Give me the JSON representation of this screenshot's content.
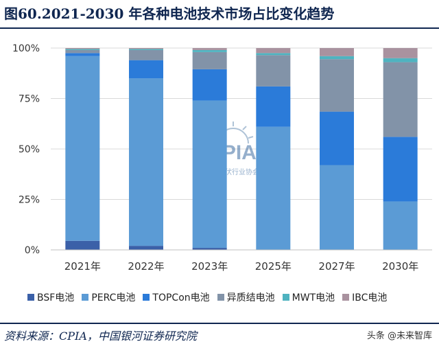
{
  "header": {
    "title": "图60.2021-2030 年各种电池技术市场占比变化趋势"
  },
  "chart_data": {
    "type": "bar",
    "stacked": true,
    "title": "",
    "xlabel": "",
    "ylabel": "",
    "ylim": [
      0,
      100
    ],
    "yticks": [
      "0%",
      "25%",
      "50%",
      "75%",
      "100%"
    ],
    "grid": true,
    "legend_position": "bottom",
    "categories": [
      "2021年",
      "2022年",
      "2023年",
      "2025年",
      "2027年",
      "2030年"
    ],
    "series": [
      {
        "name": "BSF电池",
        "color": "#3b60a8",
        "values": [
          4.5,
          2.0,
          1.0,
          0.0,
          0.0,
          0.0
        ]
      },
      {
        "name": "PERC电池",
        "color": "#5b9bd5",
        "values": [
          91.5,
          83.0,
          73.0,
          61.0,
          42.0,
          24.0
        ]
      },
      {
        "name": "TOPCon电池",
        "color": "#2b7bd9",
        "values": [
          1.5,
          9.0,
          15.5,
          20.0,
          26.5,
          32.0
        ]
      },
      {
        "name": "异质结电池",
        "color": "#8293a8",
        "values": [
          1.5,
          5.0,
          8.5,
          15.5,
          26.0,
          37.0
        ]
      },
      {
        "name": "MWT电池",
        "color": "#4fb3c0",
        "values": [
          0.5,
          0.5,
          1.0,
          1.0,
          1.5,
          2.0
        ]
      },
      {
        "name": "IBC电池",
        "color": "#a9929f",
        "values": [
          0.5,
          0.5,
          1.0,
          2.5,
          4.0,
          5.0
        ]
      }
    ]
  },
  "watermark": {
    "text": "CPIA",
    "subtext": "中国光伏行业协会"
  },
  "footer": {
    "source": "资料来源：CPIA，中国银河证券研究院",
    "brand": "头条 @未来智库"
  }
}
